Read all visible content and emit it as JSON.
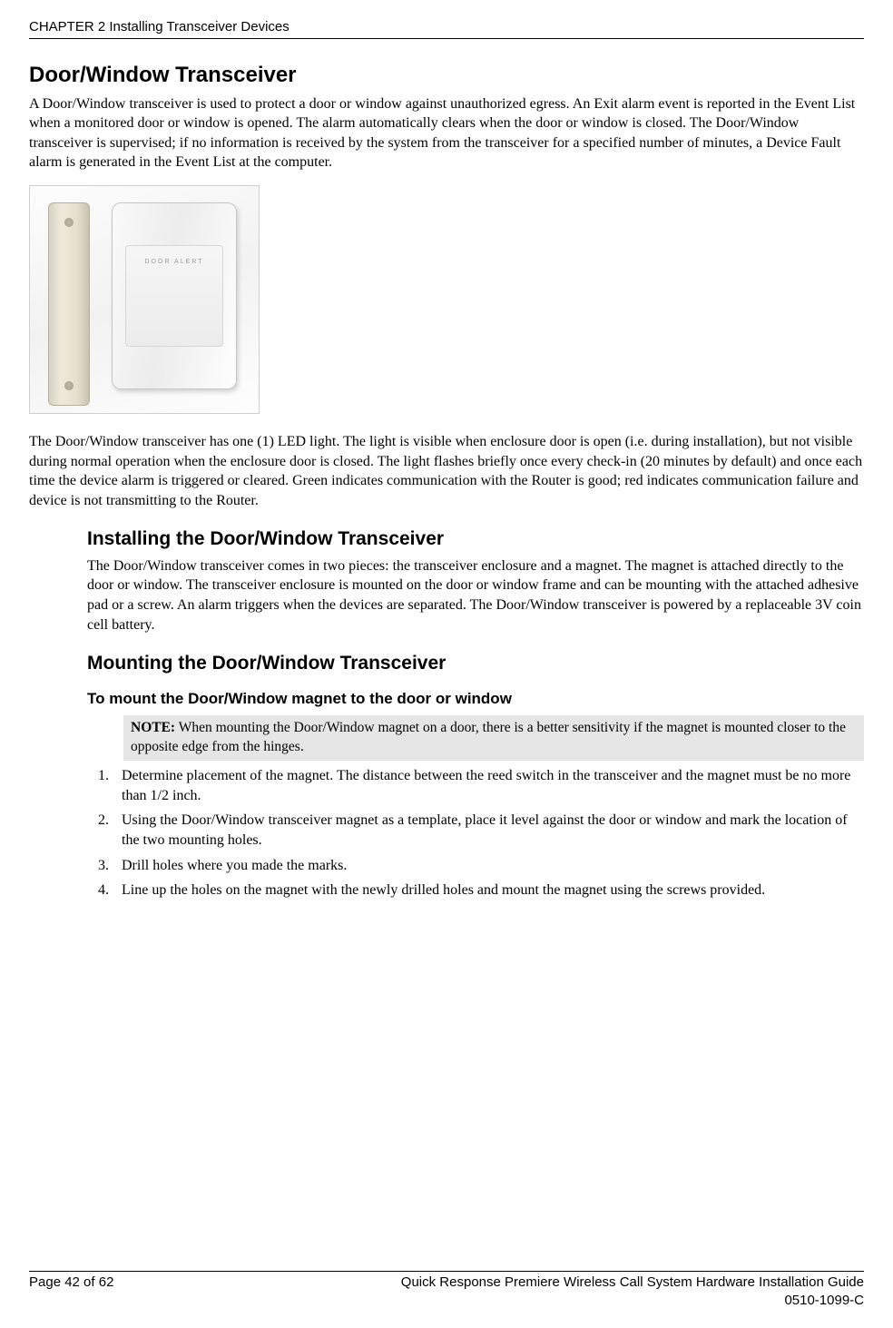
{
  "header": {
    "chapter_line": "CHAPTER 2 Installing Transceiver Devices"
  },
  "section": {
    "title": "Door/Window Transceiver",
    "intro": "A Door/Window transceiver is used to protect a door or window against unauthorized egress. An Exit alarm event is reported in the Event List when a monitored door or window is opened. The alarm automatically clears when the door or window is closed. The Door/Window transceiver is supervised; if no information is received by the system from the transceiver for a specified number of minutes, a Device Fault alarm is generated in the Event List at the computer.",
    "led_para": "The Door/Window transceiver has one (1) LED light. The light is visible when enclosure door is open (i.e. during installation), but not visible during normal operation when the enclosure door is closed. The light flashes briefly once every check-in (20 minutes by default) and once each time the device alarm is triggered or cleared. Green indicates communication with the Router is good; red indicates communication failure and device is not transmitting to the Router."
  },
  "installing": {
    "title": "Installing the Door/Window Transceiver",
    "para": "The Door/Window transceiver comes in two pieces: the transceiver enclosure and a magnet. The magnet is attached directly to the door or window. The transceiver enclosure is mounted on the door or window frame and can be mounting with the attached adhesive pad or a screw. An alarm triggers when the devices are separated. The Door/Window transceiver is powered by a replaceable 3V coin cell battery."
  },
  "mounting": {
    "title": "Mounting the Door/Window Transceiver",
    "heading": "To mount the Door/Window magnet to the door or window",
    "note_label": "NOTE:",
    "note_body": " When mounting the Door/Window magnet on a door, there is a better sensitivity if the magnet is mounted closer to the opposite edge from the hinges.",
    "steps": [
      "Determine placement of the magnet. The distance between the reed switch in the transceiver and the magnet must be no more than 1/2 inch.",
      "Using the Door/Window transceiver magnet as a template, place it level against the door or window and mark the location of the two mounting holes.",
      "Drill holes where you made the marks.",
      "Line up the holes on the magnet with the newly drilled holes and mount the magnet using the screws provided."
    ]
  },
  "footer": {
    "page": "Page 42 of 62",
    "title": "Quick Response Premiere Wireless Call System Hardware Installation Guide",
    "docnum": "0510-1099-C"
  },
  "figure": {
    "brand_text": "DOOR ALERT"
  }
}
